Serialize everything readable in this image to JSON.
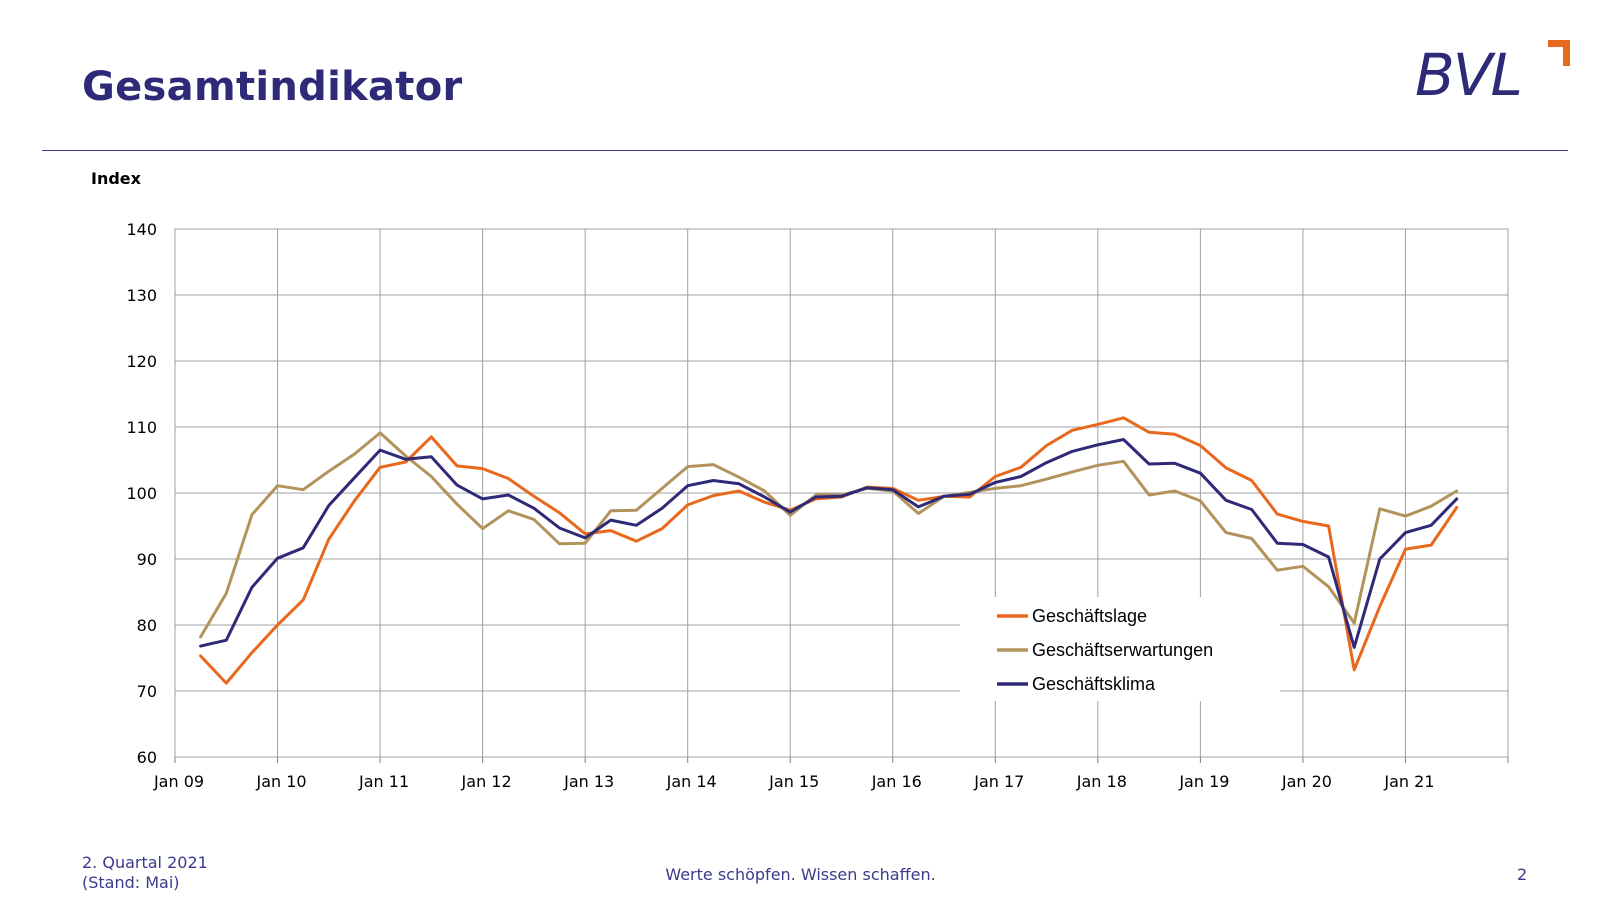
{
  "header": {
    "title": "Gesamtindikator",
    "logo_text": "BVL"
  },
  "footer": {
    "period": "2. Quartal 2021",
    "status": "(Stand: Mai)",
    "slogan": "Werte schöpfen. Wissen schaffen.",
    "page_number": "2"
  },
  "colors": {
    "brand_blue": "#2e2a78",
    "accent_orange": "#e8681e",
    "lage": "#e8681e",
    "erwartungen": "#b2935c",
    "klima": "#2e2a78"
  },
  "chart_data": {
    "type": "line",
    "title": "",
    "ylabel": "Index",
    "xlabel": "",
    "ylim": [
      60,
      140
    ],
    "yticks": [
      60,
      70,
      80,
      90,
      100,
      110,
      120,
      130,
      140
    ],
    "x_start_year": 2009,
    "x_end_year": 2022,
    "x_period": "quarterly",
    "x_tick_labels": [
      "Jan 09",
      "Jan 10",
      "Jan 11",
      "Jan 12",
      "Jan 13",
      "Jan 14",
      "Jan 15",
      "Jan 16",
      "Jan 17",
      "Jan 18",
      "Jan 19",
      "Jan 20",
      "Jan 21"
    ],
    "grid": true,
    "legend_position": "bottom-right",
    "series": [
      {
        "name": "Geschäftslage",
        "color": "#e8681e",
        "values": [
          75.3,
          71.2,
          75.8,
          80.0,
          83.8,
          93.0,
          98.8,
          103.9,
          104.7,
          108.5,
          104.1,
          103.7,
          102.2,
          99.5,
          97.0,
          93.8,
          94.3,
          92.7,
          94.6,
          98.2,
          99.6,
          100.3,
          98.6,
          97.4,
          99.1,
          99.4,
          100.9,
          100.7,
          98.9,
          99.5,
          99.4,
          102.5,
          103.9,
          107.2,
          109.5,
          110.4,
          111.4,
          109.2,
          108.9,
          107.2,
          103.8,
          101.9,
          96.8,
          95.7,
          95.0,
          73.2,
          82.8,
          91.5,
          92.1,
          97.8
        ]
      },
      {
        "name": "Geschäftserwartungen",
        "color": "#b2935c",
        "values": [
          78.2,
          84.8,
          96.7,
          101.1,
          100.5,
          103.3,
          105.9,
          109.1,
          105.6,
          102.5,
          98.3,
          94.6,
          97.3,
          96.0,
          92.3,
          92.4,
          97.3,
          97.4,
          100.7,
          104.0,
          104.3,
          102.4,
          100.3,
          96.6,
          99.7,
          99.7,
          100.7,
          100.3,
          96.9,
          99.5,
          100.1,
          100.7,
          101.1,
          102.1,
          103.2,
          104.2,
          104.8,
          99.7,
          100.3,
          98.8,
          94.0,
          93.1,
          88.3,
          88.9,
          85.8,
          80.3,
          97.6,
          96.5,
          98.0,
          100.3
        ]
      },
      {
        "name": "Geschäftsklima",
        "color": "#2e2a78",
        "values": [
          76.8,
          77.7,
          85.7,
          90.1,
          91.7,
          98.1,
          102.3,
          106.5,
          105.1,
          105.5,
          101.2,
          99.1,
          99.7,
          97.7,
          94.7,
          93.2,
          95.9,
          95.1,
          97.7,
          101.1,
          101.9,
          101.4,
          99.4,
          97.1,
          99.4,
          99.5,
          100.8,
          100.5,
          97.9,
          99.5,
          99.8,
          101.6,
          102.5,
          104.6,
          106.3,
          107.3,
          108.1,
          104.4,
          104.5,
          103.0,
          98.9,
          97.5,
          92.4,
          92.2,
          90.3,
          76.6,
          90.0,
          94.0,
          95.1,
          99.1
        ]
      }
    ]
  }
}
